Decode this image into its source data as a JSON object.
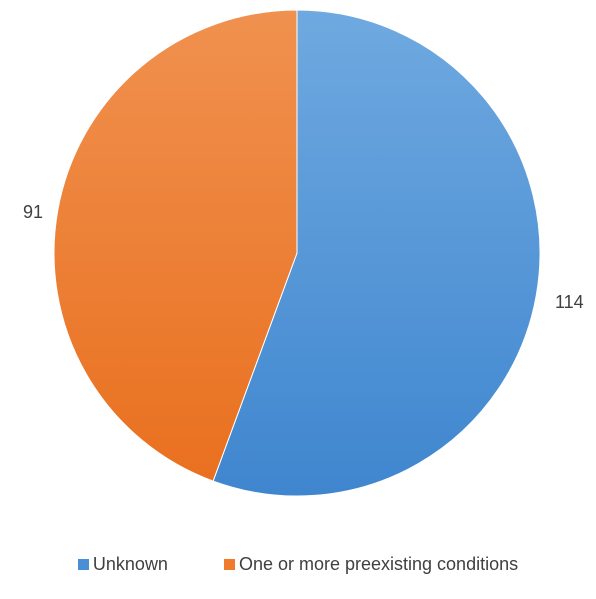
{
  "chart_data": {
    "type": "pie",
    "categories": [
      "Unknown",
      "One or more preexisting conditions"
    ],
    "values": [
      114,
      91
    ],
    "data_labels": [
      "114",
      "91"
    ],
    "colors": [
      "#4a8fd6",
      "#ef7b2d"
    ],
    "start_angle_deg": 0,
    "direction": "clockwise",
    "legend_position": "bottom",
    "title": ""
  },
  "legend": {
    "items": [
      {
        "label": "Unknown",
        "color": "#4a8fd6"
      },
      {
        "label": "One or more preexisting conditions",
        "color": "#ef7b2d"
      }
    ]
  }
}
